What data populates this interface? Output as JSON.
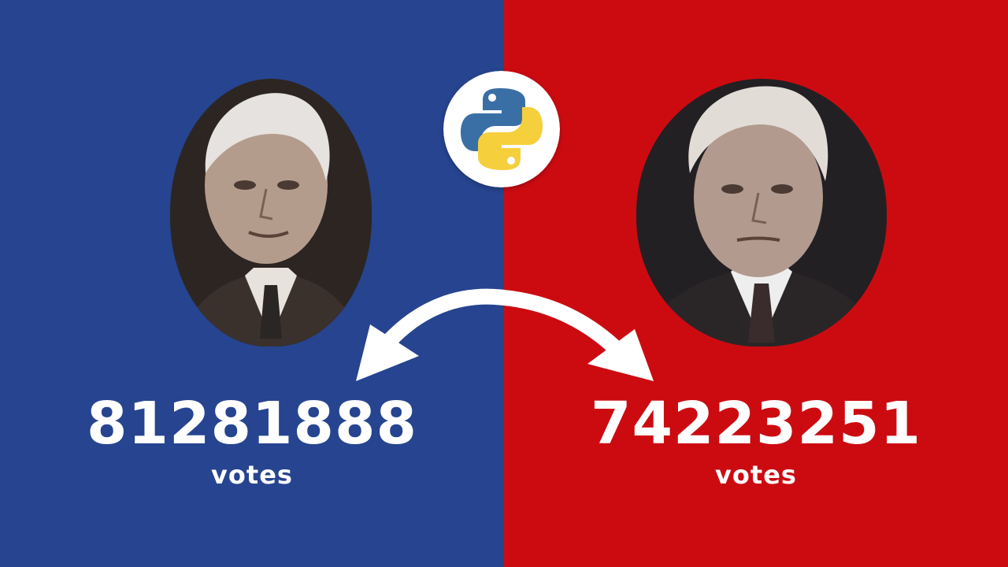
{
  "colors": {
    "left_background": "#26448f",
    "right_background": "#cc0b11",
    "text": "#ffffff",
    "python_blue": "#3a6fa5",
    "python_yellow": "#f6cf3c"
  },
  "left": {
    "portrait_icon": "person-portrait",
    "votes": "81281888",
    "votes_label": "votes"
  },
  "right": {
    "portrait_icon": "person-portrait",
    "votes": "74223251",
    "votes_label": "votes"
  },
  "center": {
    "logo_icon": "python-logo-icon",
    "arrow_icon": "double-headed-curved-arrow-icon"
  }
}
